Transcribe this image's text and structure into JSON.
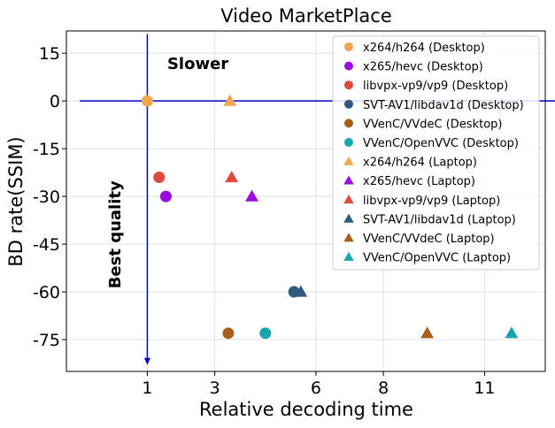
{
  "chart_data": {
    "type": "scatter",
    "title": "Video MarketPlace",
    "xlabel": "Relative decoding time",
    "ylabel": "BD rate(SSIM)",
    "x_ticks": [
      1,
      3,
      6,
      8,
      11
    ],
    "x_tick_labels": [
      "1",
      "3",
      "6",
      "8",
      "11"
    ],
    "y_ticks": [
      15,
      0,
      -15,
      -30,
      -45,
      -60,
      -75
    ],
    "y_tick_labels": [
      "15",
      "0",
      "-15",
      "-30",
      "-45",
      "-60",
      "-75"
    ],
    "xlim": [
      -1.4,
      12.8
    ],
    "ylim": [
      -85,
      22
    ],
    "grid": true,
    "legend_position": "top-right",
    "annotations": [
      {
        "text": "Slower",
        "x": 2.5,
        "y": 10,
        "rotation": 0
      },
      {
        "text": "Best quality",
        "x": 0.2,
        "y": -42,
        "rotation": -90
      }
    ],
    "reference_lines": {
      "color": "#0000cc",
      "horizontal": {
        "y": 0,
        "x_from": -1.0,
        "x_to": 13.4
      },
      "vertical": {
        "x": 1,
        "y_from": 21,
        "y_to": -83
      }
    },
    "series": [
      {
        "name": "x264/h264 (Desktop)",
        "marker": "circle",
        "color": "#f0a64e",
        "points": [
          {
            "x": 1.0,
            "y": 0
          }
        ]
      },
      {
        "name": "x265/hevc (Desktop)",
        "marker": "circle",
        "color": "#9b0be0",
        "points": [
          {
            "x": 1.55,
            "y": -30
          }
        ]
      },
      {
        "name": "libvpx-vp9/vp9 (Desktop)",
        "marker": "circle",
        "color": "#e04a3c",
        "points": [
          {
            "x": 1.35,
            "y": -24
          }
        ]
      },
      {
        "name": "SVT-AV1/libdav1d (Desktop)",
        "marker": "circle",
        "color": "#2e5a7d",
        "points": [
          {
            "x": 5.35,
            "y": -60
          }
        ]
      },
      {
        "name": "VVenC/VVdeC (Desktop)",
        "marker": "circle",
        "color": "#a95e1c",
        "points": [
          {
            "x": 3.4,
            "y": -73
          }
        ]
      },
      {
        "name": "VVenC/OpenVVC (Desktop)",
        "marker": "circle",
        "color": "#16a5ad",
        "points": [
          {
            "x": 4.5,
            "y": -73
          }
        ]
      },
      {
        "name": "x264/h264 (Laptop)",
        "marker": "triangle",
        "color": "#f0a64e",
        "points": [
          {
            "x": 3.45,
            "y": 0
          }
        ]
      },
      {
        "name": "x265/hevc (Laptop)",
        "marker": "triangle",
        "color": "#9b0be0",
        "points": [
          {
            "x": 4.1,
            "y": -30
          }
        ]
      },
      {
        "name": "libvpx-vp9/vp9 (Laptop)",
        "marker": "triangle",
        "color": "#e04a3c",
        "points": [
          {
            "x": 3.5,
            "y": -24
          }
        ]
      },
      {
        "name": "SVT-AV1/libdav1d (Laptop)",
        "marker": "triangle",
        "color": "#2e5a7d",
        "points": [
          {
            "x": 5.55,
            "y": -60
          }
        ]
      },
      {
        "name": "VVenC/VVdeC (Laptop)",
        "marker": "triangle",
        "color": "#a95e1c",
        "points": [
          {
            "x": 9.3,
            "y": -73
          }
        ]
      },
      {
        "name": "VVenC/OpenVVC (Laptop)",
        "marker": "triangle",
        "color": "#16a5ad",
        "points": [
          {
            "x": 11.8,
            "y": -73
          }
        ]
      }
    ]
  }
}
